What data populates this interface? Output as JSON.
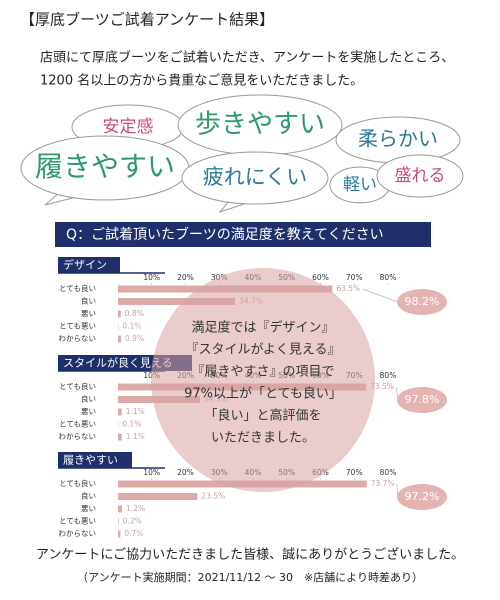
{
  "title": "【厚底ブーツご試着アンケート結果】",
  "intro": [
    "店頭にて厚底ブーツをご試着いただき、アンケートを実施したところ、",
    "1200 名以上の方から貴重なご意見をいただきました。"
  ],
  "bubbles": [
    "安定感",
    "歩きやすい",
    "柔らかい",
    "履きやすい",
    "疲れにくい",
    "軽い",
    "盛れる"
  ],
  "question": "Q：ご試着頂いたブーツの満足度を教えてください",
  "chart_data": [
    {
      "type": "bar",
      "orientation": "horizontal",
      "title": "デザイン",
      "categories": [
        "とても良い",
        "良い",
        "悪い",
        "とても悪い",
        "わからない"
      ],
      "values": [
        63.5,
        34.7,
        0.8,
        0.1,
        0.9
      ],
      "value_labels": [
        "63.5%",
        "34.7%",
        "0.8%",
        "0.1%",
        "0.9%"
      ],
      "xlim": [
        0,
        80
      ],
      "xticks": [
        {
          "value": 10,
          "label": "10%"
        },
        {
          "value": 20,
          "label": "20%"
        },
        {
          "value": 30,
          "label": "30%"
        },
        {
          "value": 40,
          "label": "40%"
        },
        {
          "value": 50,
          "label": "50%"
        },
        {
          "value": 60,
          "label": "60%"
        },
        {
          "value": 70,
          "label": "70%"
        },
        {
          "value": 80,
          "label": "80%"
        }
      ],
      "color": "#dcaaa8",
      "summary": "98.2%"
    },
    {
      "type": "bar",
      "orientation": "horizontal",
      "title": "スタイルが良く見える",
      "categories": [
        "とても良い",
        "良い",
        "悪い",
        "とても悪い",
        "わからない"
      ],
      "values": [
        73.5,
        24.3,
        1.1,
        0.1,
        1.1
      ],
      "value_labels": [
        "73.5%",
        "24.3%",
        "1.1%",
        "0.1%",
        "1.1%"
      ],
      "xlim": [
        0,
        80
      ],
      "xticks": [
        {
          "value": 10,
          "label": "10%"
        },
        {
          "value": 20,
          "label": "20%"
        },
        {
          "value": 30,
          "label": "30%"
        },
        {
          "value": 40,
          "label": "40%"
        },
        {
          "value": 50,
          "label": "50%"
        },
        {
          "value": 60,
          "label": "60%"
        },
        {
          "value": 70,
          "label": "70%"
        },
        {
          "value": 80,
          "label": "80%"
        }
      ],
      "color": "#dcaaa8",
      "summary": "97.8%"
    },
    {
      "type": "bar",
      "orientation": "horizontal",
      "title": "履きやすい",
      "categories": [
        "とても良い",
        "良い",
        "悪い",
        "とても悪い",
        "わからない"
      ],
      "values": [
        73.7,
        23.5,
        1.2,
        0.2,
        0.7
      ],
      "value_labels": [
        "73.7%",
        "23.5%",
        "1.2%",
        "0.2%",
        "0.7%"
      ],
      "xlim": [
        0,
        80
      ],
      "xticks": [
        {
          "value": 10,
          "label": "10%"
        },
        {
          "value": 20,
          "label": "20%"
        },
        {
          "value": 30,
          "label": "30%"
        },
        {
          "value": 40,
          "label": "40%"
        },
        {
          "value": 50,
          "label": "50%"
        },
        {
          "value": 60,
          "label": "60%"
        },
        {
          "value": 70,
          "label": "70%"
        },
        {
          "value": 80,
          "label": "80%"
        }
      ],
      "color": "#dcaaa8",
      "summary": "97.2%"
    }
  ],
  "callout": [
    "満足度では『デザイン』",
    "『スタイルがよく見える』",
    "『履きやすさ』の項目で",
    "97%以上が「とても良い」",
    "「良い」と高評価を",
    "いただきました。"
  ],
  "footer": [
    "アンケートにご協力いただきました皆様、誠にありがとうございました。",
    "（アンケート実施期間：2021/11/12 ～ 30　※店舗により時差あり）"
  ]
}
